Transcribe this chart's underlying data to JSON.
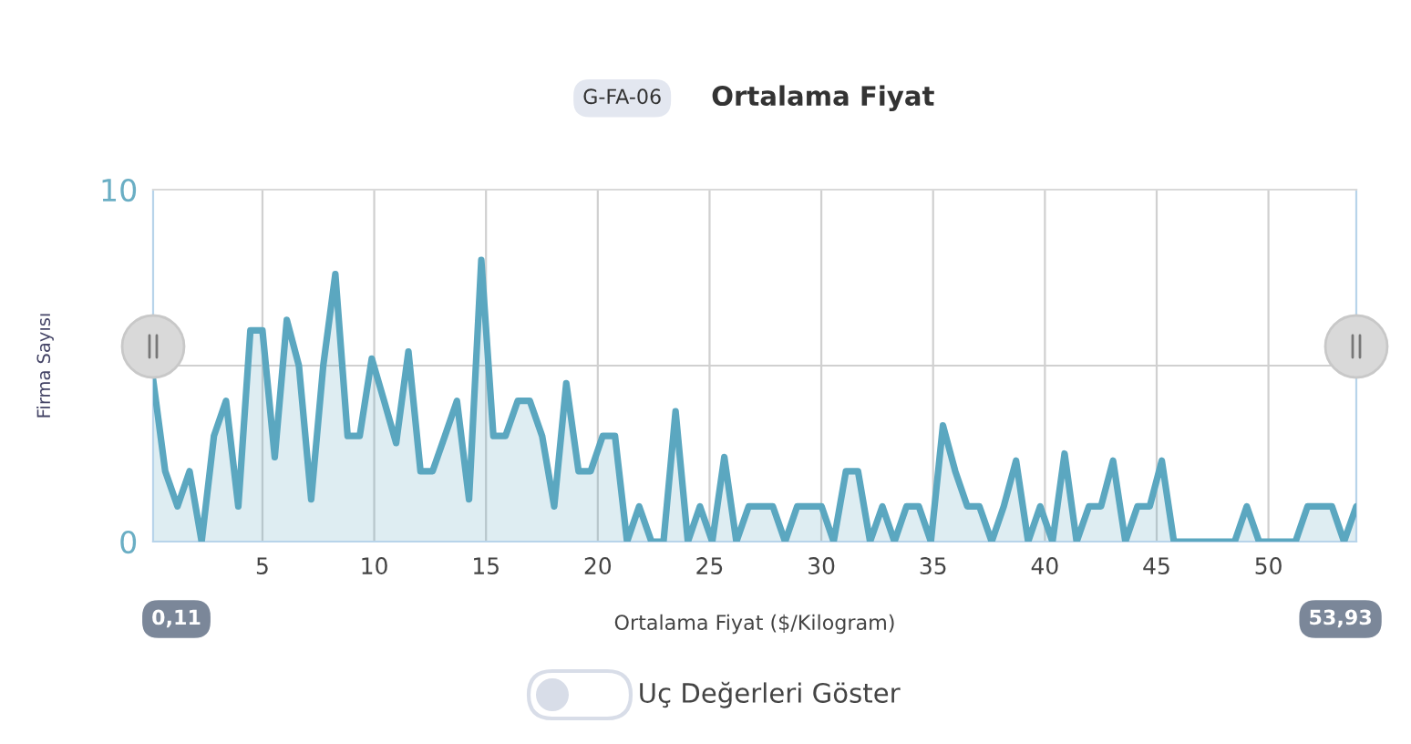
{
  "chart_data": {
    "type": "area",
    "title": "Ortalama Fiyat",
    "xlabel": "Ortalama Fiyat ($/Kilogram)",
    "ylabel": "Firma Sayısı",
    "annotations": [
      "G-FA-06",
      "0,11",
      "53,93",
      "Uç Değerleri Göster"
    ],
    "x": [
      0.11,
      0.65,
      1.2,
      1.74,
      2.28,
      2.83,
      3.37,
      3.92,
      4.46,
      5.0,
      5.55,
      6.09,
      6.63,
      7.18,
      7.72,
      8.26,
      8.81,
      9.35,
      9.89,
      10.44,
      10.98,
      11.53,
      12.07,
      12.61,
      13.16,
      13.7,
      14.24,
      14.79,
      15.33,
      15.87,
      16.42,
      16.96,
      17.51,
      18.05,
      18.59,
      19.14,
      19.68,
      20.22,
      20.77,
      21.31,
      21.85,
      22.4,
      22.94,
      23.48,
      24.03,
      24.57,
      25.12,
      25.66,
      26.2,
      26.75,
      27.29,
      27.83,
      28.38,
      28.92,
      29.46,
      30.01,
      30.55,
      31.1,
      31.64,
      32.18,
      32.73,
      33.27,
      33.81,
      34.36,
      34.9,
      35.44,
      35.99,
      36.53,
      37.07,
      37.62,
      38.16,
      38.71,
      39.25,
      39.79,
      40.34,
      40.88,
      41.42,
      41.97,
      42.51,
      43.05,
      43.6,
      44.14,
      44.69,
      45.23,
      45.77,
      46.32,
      46.86,
      47.4,
      47.95,
      48.49,
      49.03,
      49.58,
      50.12,
      50.66,
      51.21,
      51.75,
      52.3,
      52.84,
      53.38,
      53.93
    ],
    "series": [
      {
        "color": "#5ba7c0",
        "values": [
          4.6,
          2,
          1,
          2,
          0,
          3,
          4,
          1,
          6,
          6,
          2.4,
          6.3,
          5,
          1.2,
          5,
          7.6,
          3,
          3,
          5.2,
          4,
          2.8,
          5.4,
          2,
          2,
          3,
          4,
          1.2,
          8,
          3,
          3,
          4,
          4,
          3,
          1,
          4.5,
          2,
          2,
          3,
          3,
          0,
          1,
          0,
          0,
          3.7,
          0,
          1,
          0,
          2.4,
          0,
          1,
          1,
          1,
          0,
          1,
          1,
          1,
          0,
          2,
          2,
          0,
          1,
          0,
          1,
          1,
          0,
          3.3,
          2,
          1,
          1,
          0,
          1,
          2.3,
          0,
          1,
          0,
          2.5,
          0,
          1,
          1,
          2.3,
          0,
          1,
          1,
          2.3,
          0,
          0,
          0,
          0,
          0,
          0,
          1,
          0,
          0,
          0,
          0,
          1,
          1,
          1,
          0,
          1
        ]
      }
    ],
    "xlim": [
      0.11,
      53.93
    ],
    "ylim": [
      0,
      10
    ],
    "xticks": [
      5,
      10,
      15,
      20,
      25,
      30,
      35,
      40,
      45,
      50
    ],
    "yticks": [
      0,
      {
        "value": 5,
        "label": null
      },
      10
    ],
    "grid": true,
    "legend": false
  }
}
